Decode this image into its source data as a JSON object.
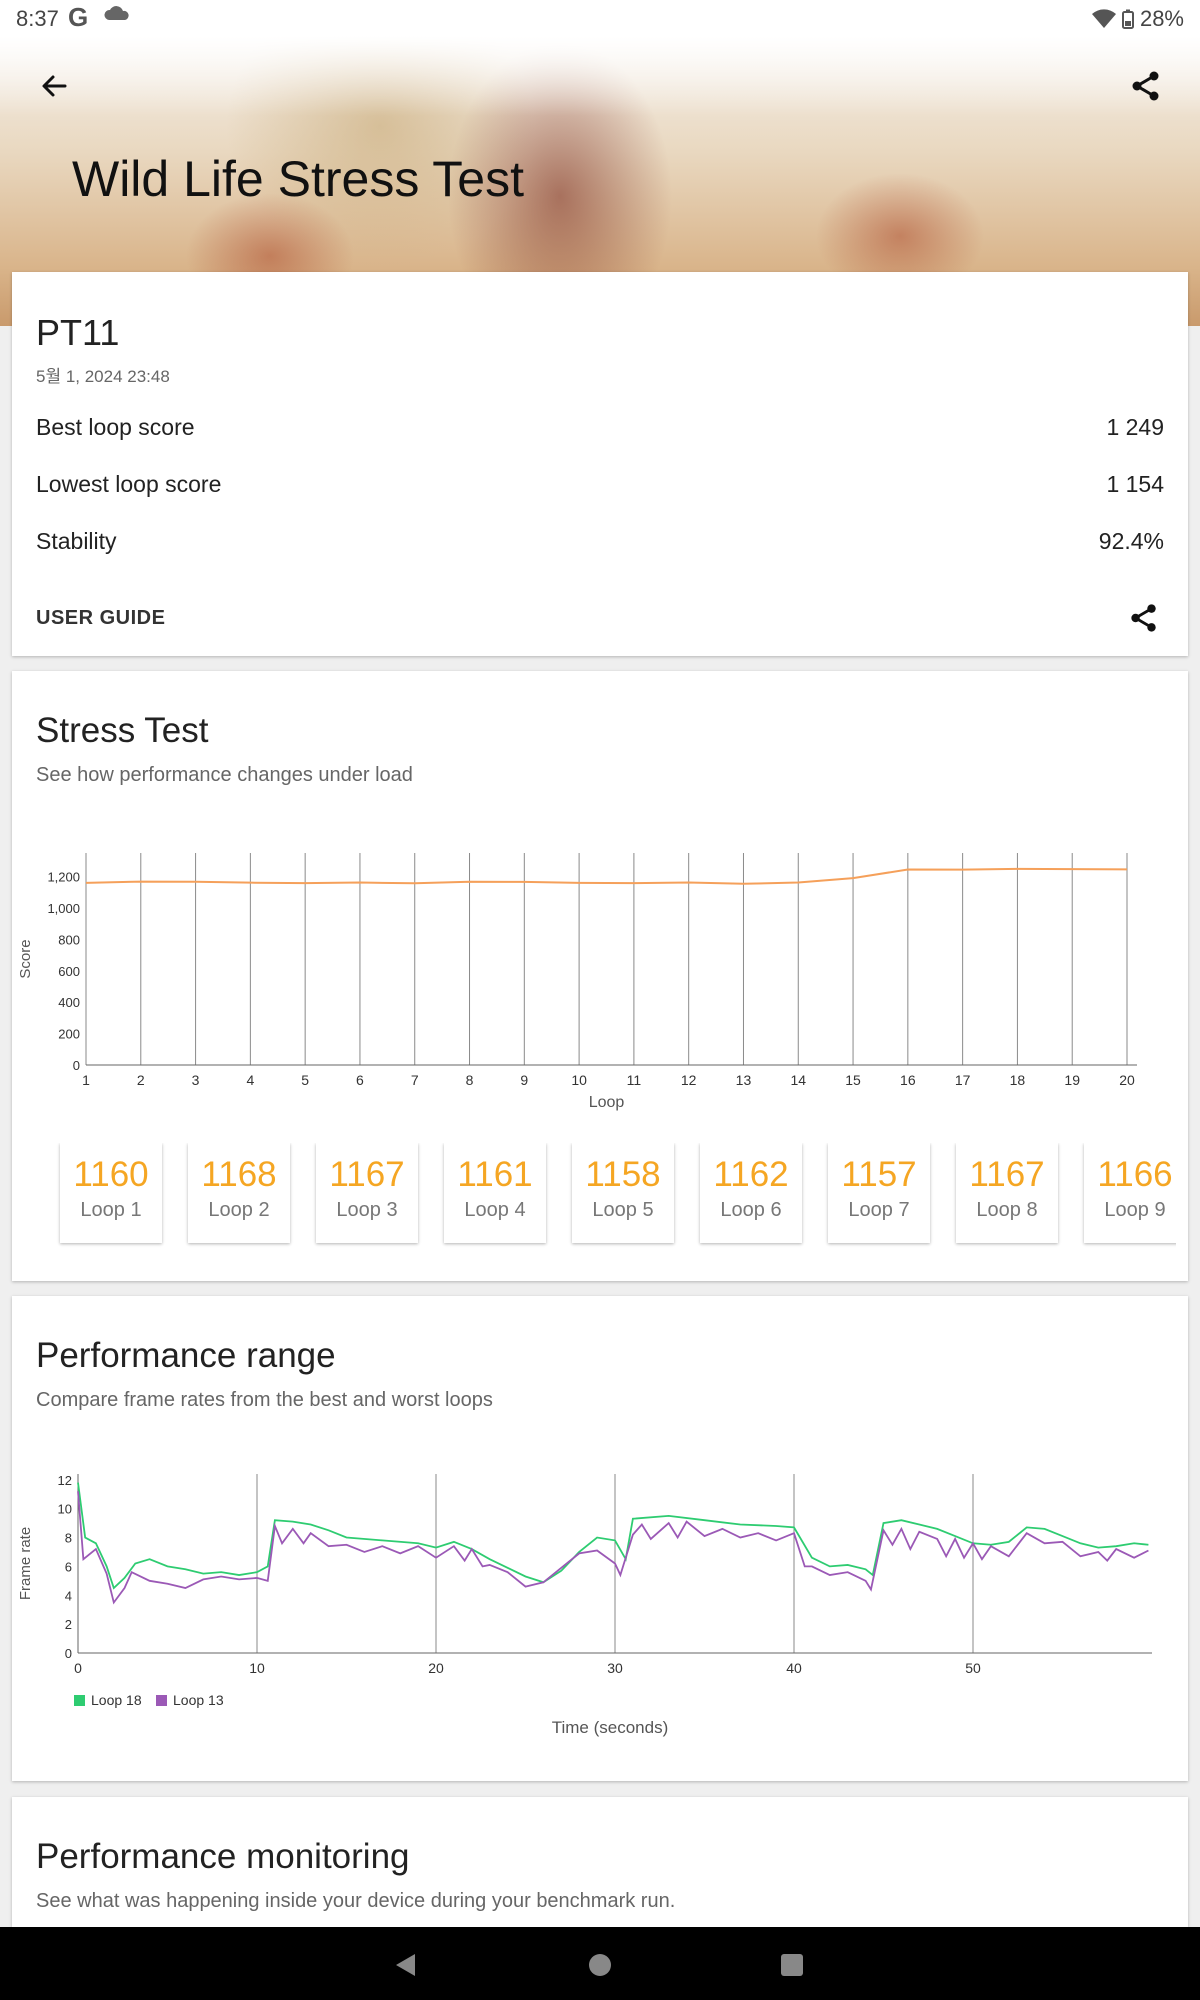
{
  "status_bar": {
    "time": "8:37",
    "g": "G",
    "battery": "28%"
  },
  "header": {
    "title": "Wild Life Stress Test"
  },
  "summary": {
    "device": "PT11",
    "date": "5월 1, 2024 23:48",
    "rows": [
      {
        "label": "Best loop score",
        "value": "1 249"
      },
      {
        "label": "Lowest loop score",
        "value": "1 154"
      },
      {
        "label": "Stability",
        "value": "92.4%"
      }
    ],
    "user_guide": "USER GUIDE"
  },
  "stress": {
    "title": "Stress Test",
    "subtitle": "See how performance changes under load",
    "loop_cards": [
      {
        "value": "1160",
        "label": "Loop 1"
      },
      {
        "value": "1168",
        "label": "Loop 2"
      },
      {
        "value": "1167",
        "label": "Loop 3"
      },
      {
        "value": "1161",
        "label": "Loop 4"
      },
      {
        "value": "1158",
        "label": "Loop 5"
      },
      {
        "value": "1162",
        "label": "Loop 6"
      },
      {
        "value": "1157",
        "label": "Loop 7"
      },
      {
        "value": "1167",
        "label": "Loop 8"
      },
      {
        "value": "1166",
        "label": "Loop 9"
      }
    ]
  },
  "range": {
    "title": "Performance range",
    "subtitle": "Compare frame rates from the best and worst loops"
  },
  "monitoring": {
    "title": "Performance monitoring",
    "subtitle": "See what was happening inside your device during your benchmark run."
  },
  "chart_data": [
    {
      "type": "line",
      "title": "",
      "xlabel": "Loop",
      "ylabel": "Score",
      "x": [
        1,
        2,
        3,
        4,
        5,
        6,
        7,
        8,
        9,
        10,
        11,
        12,
        13,
        14,
        15,
        16,
        17,
        18,
        19,
        20
      ],
      "y_ticks": [
        "0",
        "200",
        "400",
        "600",
        "800",
        "1,000",
        "1,200"
      ],
      "ylim": [
        0,
        1350
      ],
      "grid": "vertical",
      "color": "#f5a05a",
      "series": [
        {
          "name": "Score",
          "values": [
            1160,
            1168,
            1167,
            1161,
            1158,
            1162,
            1157,
            1167,
            1166,
            1160,
            1158,
            1162,
            1154,
            1162,
            1190,
            1245,
            1244,
            1249,
            1247,
            1246
          ]
        }
      ]
    },
    {
      "type": "line",
      "title": "",
      "xlabel": "Time (seconds)",
      "ylabel": "Frame rate",
      "x_ticks": [
        "0",
        "10",
        "20",
        "30",
        "40",
        "50"
      ],
      "y_ticks": [
        "0",
        "2",
        "4",
        "6",
        "8",
        "10",
        "12"
      ],
      "xlim": [
        0,
        60
      ],
      "ylim": [
        0,
        12.4
      ],
      "grid": "vertical",
      "legend": "bottom-left",
      "series": [
        {
          "name": "Loop 18",
          "color": "#2ecc71",
          "points": [
            [
              0,
              11.8
            ],
            [
              0.4,
              8.0
            ],
            [
              1,
              7.6
            ],
            [
              1.6,
              6
            ],
            [
              2,
              4.5
            ],
            [
              2.6,
              5.2
            ],
            [
              3.2,
              6.2
            ],
            [
              4,
              6.5
            ],
            [
              5,
              6
            ],
            [
              6,
              5.8
            ],
            [
              7,
              5.5
            ],
            [
              8,
              5.6
            ],
            [
              9,
              5.4
            ],
            [
              10,
              5.6
            ],
            [
              10.6,
              6
            ],
            [
              11,
              9.2
            ],
            [
              12,
              9.1
            ],
            [
              13,
              8.9
            ],
            [
              14,
              8.5
            ],
            [
              15,
              8.0
            ],
            [
              17,
              7.8
            ],
            [
              19,
              7.6
            ],
            [
              20,
              7.3
            ],
            [
              21,
              7.7
            ],
            [
              22,
              7.2
            ],
            [
              23,
              6.5
            ],
            [
              25,
              5.3
            ],
            [
              26,
              4.9
            ],
            [
              27,
              5.7
            ],
            [
              28,
              7.0
            ],
            [
              29,
              8
            ],
            [
              30,
              7.8
            ],
            [
              30.6,
              6.5
            ],
            [
              31,
              9.3
            ],
            [
              33,
              9.5
            ],
            [
              35,
              9.2
            ],
            [
              37,
              8.9
            ],
            [
              39,
              8.8
            ],
            [
              40,
              8.7
            ],
            [
              41,
              6.6
            ],
            [
              42,
              6
            ],
            [
              43,
              6.1
            ],
            [
              44,
              5.8
            ],
            [
              44.4,
              5.4
            ],
            [
              45,
              9
            ],
            [
              46,
              9.2
            ],
            [
              47,
              8.9
            ],
            [
              48,
              8.6
            ],
            [
              49,
              8.1
            ],
            [
              50,
              7.6
            ],
            [
              51,
              7.5
            ],
            [
              52,
              7.7
            ],
            [
              53,
              8.7
            ],
            [
              54,
              8.6
            ],
            [
              55,
              8.1
            ],
            [
              56,
              7.6
            ],
            [
              57,
              7.3
            ],
            [
              58,
              7.4
            ],
            [
              59,
              7.6
            ],
            [
              59.8,
              7.5
            ]
          ]
        },
        {
          "name": "Loop 13",
          "color": "#9b59b6",
          "points": [
            [
              0,
              11.2
            ],
            [
              0.3,
              6.5
            ],
            [
              1,
              7.2
            ],
            [
              1.6,
              5.5
            ],
            [
              2,
              3.5
            ],
            [
              2.6,
              4.5
            ],
            [
              3,
              5.6
            ],
            [
              4,
              5.0
            ],
            [
              5,
              4.8
            ],
            [
              6,
              4.5
            ],
            [
              7,
              5.1
            ],
            [
              8,
              5.3
            ],
            [
              9,
              5.1
            ],
            [
              10,
              5.2
            ],
            [
              10.6,
              5
            ],
            [
              11,
              8.8
            ],
            [
              11.4,
              7.6
            ],
            [
              12,
              8.6
            ],
            [
              12.6,
              7.6
            ],
            [
              13,
              8.3
            ],
            [
              14,
              7.4
            ],
            [
              15,
              7.5
            ],
            [
              16,
              7.0
            ],
            [
              17,
              7.4
            ],
            [
              18,
              6.9
            ],
            [
              19,
              7.4
            ],
            [
              20,
              6.6
            ],
            [
              21,
              7.4
            ],
            [
              21.6,
              6.4
            ],
            [
              22,
              7.2
            ],
            [
              22.6,
              6
            ],
            [
              23,
              6.1
            ],
            [
              24,
              5.6
            ],
            [
              25,
              4.6
            ],
            [
              26,
              4.9
            ],
            [
              27,
              5.9
            ],
            [
              28,
              6.9
            ],
            [
              29,
              7.1
            ],
            [
              30,
              6.2
            ],
            [
              30.3,
              5.4
            ],
            [
              31,
              8.2
            ],
            [
              31.5,
              8.9
            ],
            [
              32,
              7.9
            ],
            [
              33,
              9.0
            ],
            [
              33.5,
              8.0
            ],
            [
              34,
              9.1
            ],
            [
              35,
              8.1
            ],
            [
              36,
              8.6
            ],
            [
              37,
              8.0
            ],
            [
              38,
              8.3
            ],
            [
              39,
              7.8
            ],
            [
              40,
              8.3
            ],
            [
              40.6,
              6.0
            ],
            [
              41,
              6.0
            ],
            [
              42,
              5.4
            ],
            [
              43,
              5.6
            ],
            [
              44,
              5.0
            ],
            [
              44.3,
              4.4
            ],
            [
              45,
              8.5
            ],
            [
              45.5,
              7.5
            ],
            [
              46,
              8.6
            ],
            [
              46.5,
              7.2
            ],
            [
              47,
              8.4
            ],
            [
              48,
              7.9
            ],
            [
              48.5,
              6.7
            ],
            [
              49,
              7.9
            ],
            [
              49.5,
              6.6
            ],
            [
              50,
              7.6
            ],
            [
              50.5,
              6.5
            ],
            [
              51,
              7.4
            ],
            [
              52,
              6.7
            ],
            [
              53,
              8.3
            ],
            [
              54,
              7.6
            ],
            [
              55,
              7.7
            ],
            [
              56,
              6.7
            ],
            [
              57,
              7.0
            ],
            [
              57.5,
              6.4
            ],
            [
              58,
              7.2
            ],
            [
              59,
              6.6
            ],
            [
              59.8,
              7.1
            ]
          ]
        }
      ]
    }
  ]
}
